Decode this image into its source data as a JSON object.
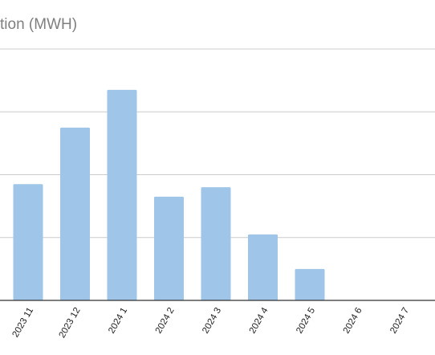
{
  "chart_data": {
    "type": "bar",
    "title": "tion (MWH)",
    "categories": [
      "2023 11",
      "2023 12",
      "2024 1",
      "2024 2",
      "2024 3",
      "2024 4",
      "2024 5",
      "2024 6",
      "2024 7"
    ],
    "values": [
      1.85,
      2.75,
      3.35,
      1.65,
      1.8,
      1.05,
      0.5,
      0,
      0
    ],
    "ylim": [
      0,
      4
    ],
    "grid": true,
    "legend": "none",
    "colors": {
      "bar": "#9fc5e8",
      "grid": "#cccccc",
      "axis": "#333333",
      "title": "#7f7f7f"
    }
  }
}
